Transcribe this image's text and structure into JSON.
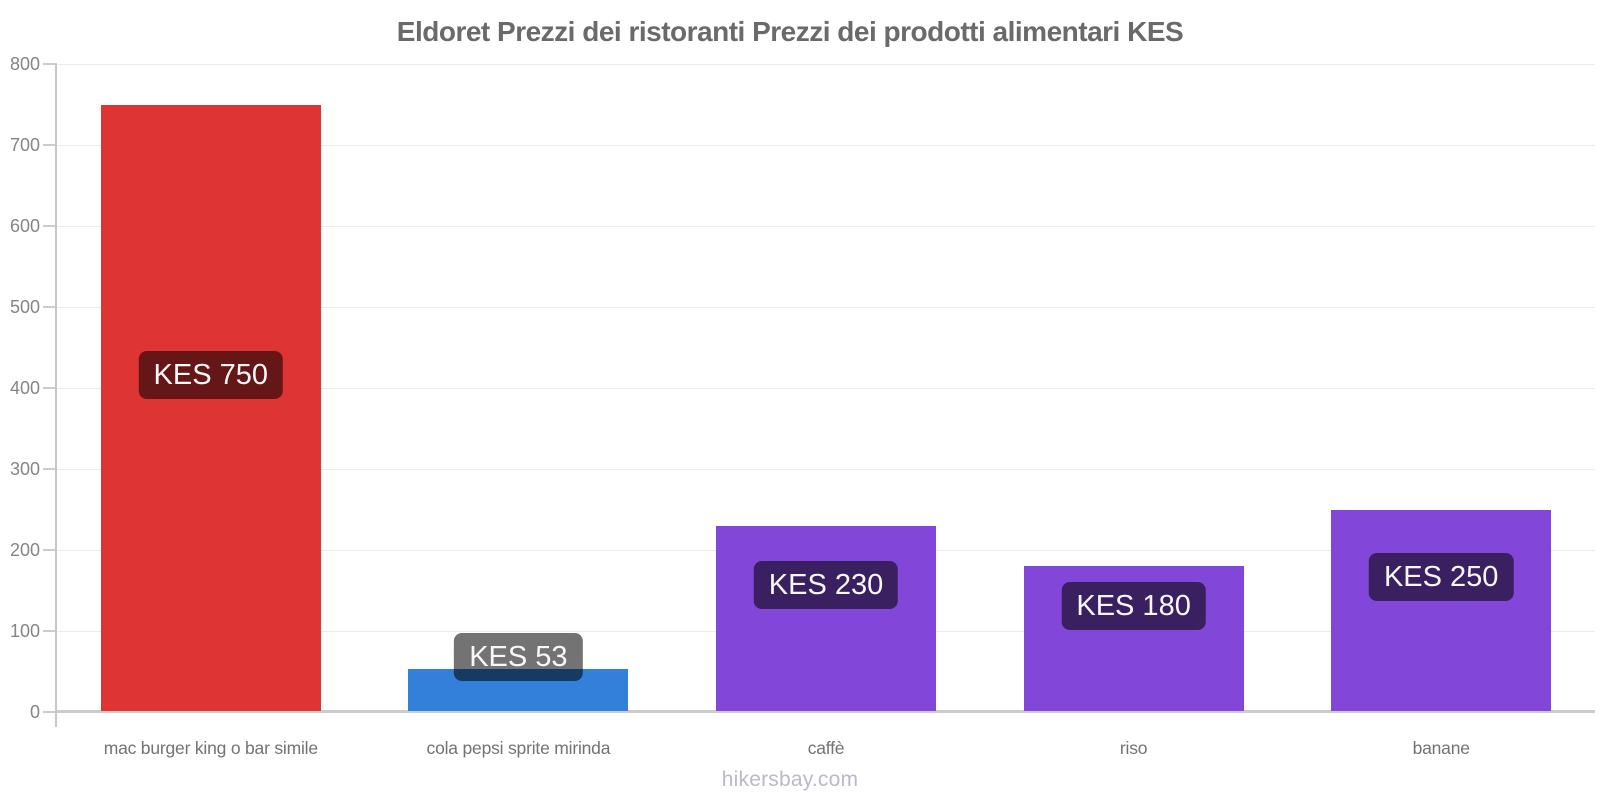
{
  "title": "Eldoret Prezzi dei ristoranti Prezzi dei prodotti alimentari KES",
  "footer": "hikersbay.com",
  "chart_data": {
    "type": "bar",
    "title": "Eldoret Prezzi dei ristoranti Prezzi dei prodotti alimentari KES",
    "currency": "KES",
    "categories": [
      "mac burger king o bar simile",
      "cola pepsi sprite mirinda",
      "caffè",
      "riso",
      "banane"
    ],
    "values": [
      750,
      53,
      230,
      180,
      250
    ],
    "value_labels": [
      "KES 750",
      "KES 53",
      "KES 230",
      "KES 180",
      "KES 250"
    ],
    "bar_colors": [
      "#df3434",
      "#3380da",
      "#8247d8",
      "#8247d8",
      "#8247d8"
    ],
    "xlabel": "",
    "ylabel": "",
    "ylim": [
      0,
      800
    ],
    "yticks": [
      0,
      100,
      200,
      300,
      400,
      500,
      600,
      700,
      800
    ],
    "grid": true,
    "legend": "none",
    "watermark": "hikersbay.com"
  },
  "colors": {
    "bar_red": "#df3434",
    "bar_blue": "#3380da",
    "bar_purple": "#8247d8",
    "value_label_overlay": "rgba(0,0,0,0.55)",
    "value_label_text": "#f7f7f7",
    "gridline": "#ebebeb",
    "axis": "#cccccc",
    "tick_label": "#858585",
    "category_label": "#737373",
    "title_text": "#6a6a6a",
    "footer_text": "#b9bac6"
  }
}
